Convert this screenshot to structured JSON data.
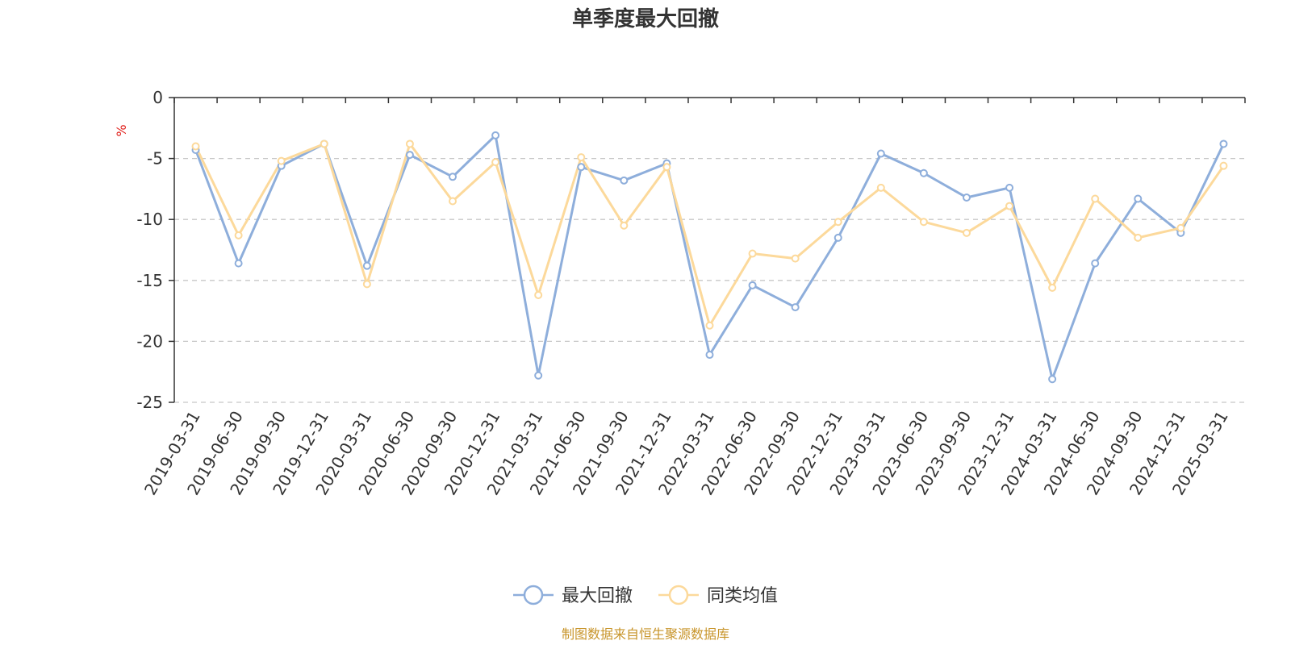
{
  "title": "单季度最大回撤",
  "source_note": "制图数据来自恒生聚源数据库",
  "colors": {
    "series0": "#8eaedb",
    "series1": "#fcd99b",
    "grid": "#c8c8c8",
    "axis": "#333333"
  },
  "chart_data": {
    "type": "line",
    "title": "单季度最大回撤",
    "ylabel": "%",
    "xlabel": "",
    "ylim": [
      -25,
      0
    ],
    "yticks": [
      0,
      -5,
      -10,
      -15,
      -20,
      -25
    ],
    "grid": "horizontal dashed",
    "legend_position": "bottom-center",
    "categories": [
      "2019-03-31",
      "2019-06-30",
      "2019-09-30",
      "2019-12-31",
      "2020-03-31",
      "2020-06-30",
      "2020-09-30",
      "2020-12-31",
      "2021-03-31",
      "2021-06-30",
      "2021-09-30",
      "2021-12-31",
      "2022-03-31",
      "2022-06-30",
      "2022-09-30",
      "2022-12-31",
      "2023-03-31",
      "2023-06-30",
      "2023-09-30",
      "2023-12-31",
      "2024-03-31",
      "2024-06-30",
      "2024-09-30",
      "2024-12-31",
      "2025-03-31"
    ],
    "series": [
      {
        "name": "最大回撤",
        "values": [
          -4.3,
          -13.6,
          -5.6,
          -3.8,
          -13.8,
          -4.7,
          -6.5,
          -3.1,
          -22.8,
          -5.7,
          -6.8,
          -5.4,
          -21.1,
          -15.4,
          -17.2,
          -11.5,
          -4.6,
          -6.2,
          -8.2,
          -7.4,
          -23.1,
          -13.6,
          -8.3,
          -11.1,
          -3.8
        ]
      },
      {
        "name": "同类均值",
        "values": [
          -4.0,
          -11.3,
          -5.2,
          -3.8,
          -15.3,
          -3.8,
          -8.5,
          -5.3,
          -16.2,
          -4.9,
          -10.5,
          -5.7,
          -18.7,
          -12.8,
          -13.2,
          -10.2,
          -7.4,
          -10.2,
          -11.1,
          -8.9,
          -15.6,
          -8.3,
          -11.5,
          -10.7,
          -5.6
        ]
      }
    ]
  }
}
